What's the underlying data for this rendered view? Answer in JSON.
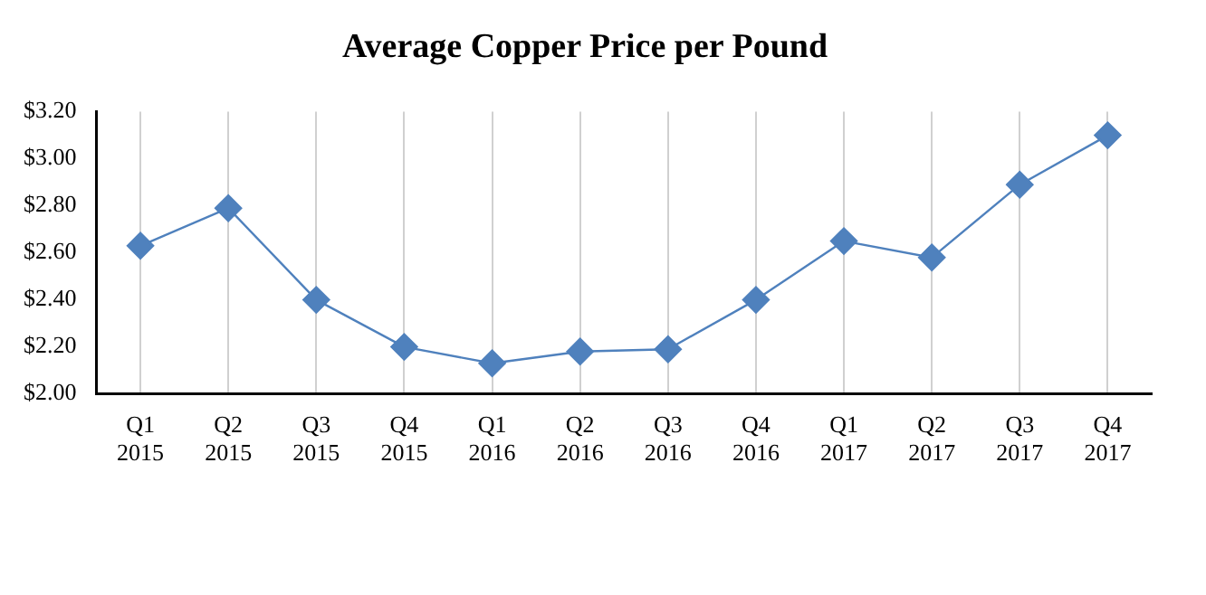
{
  "chart_data": {
    "type": "line",
    "title": "Average Copper Price per Pound",
    "categories": [
      "Q1 2015",
      "Q2 2015",
      "Q3 2015",
      "Q4 2015",
      "Q1 2016",
      "Q2 2016",
      "Q3 2016",
      "Q4 2016",
      "Q1 2017",
      "Q2 2017",
      "Q3 2017",
      "Q4 2017"
    ],
    "series": [
      {
        "color": "#4f81bd",
        "values": [
          2.63,
          2.79,
          2.4,
          2.2,
          2.13,
          2.18,
          2.19,
          2.4,
          2.65,
          2.58,
          2.89,
          3.1
        ]
      }
    ],
    "ylim": [
      2,
      3.2
    ],
    "yticks": [
      {
        "value": 2,
        "label": "$2.00"
      },
      {
        "value": 2.2,
        "label": "$2.20"
      },
      {
        "value": 2.4,
        "label": "$2.40"
      },
      {
        "value": 2.6,
        "label": "$2.60"
      },
      {
        "value": 2.8,
        "label": "$2.80"
      },
      {
        "value": 3,
        "label": "$3.00"
      },
      {
        "value": 3.2,
        "label": "$3.20"
      }
    ],
    "grid": "x",
    "marker": "diamond",
    "line_style": "solid"
  }
}
